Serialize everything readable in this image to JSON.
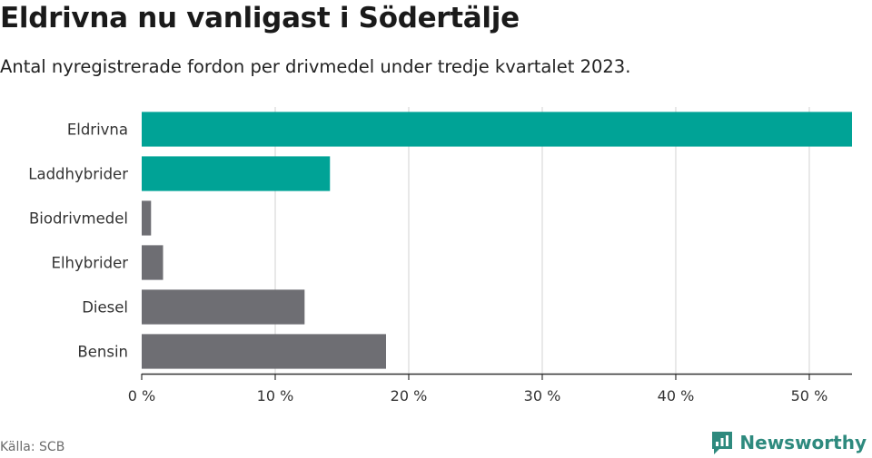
{
  "title": "Eldrivna nu vanligast i Södertälje",
  "subtitle": "Antal nyregistrerade fordon per drivmedel under tredje kvartalet 2023.",
  "source": "Källa: SCB",
  "brand": {
    "name": "Newsworthy",
    "icon": "newsworthy-logo-icon"
  },
  "colors": {
    "highlight": "#00a396",
    "default": "#6e6e73",
    "grid": "#d9d9d9",
    "axis": "#333333"
  },
  "chart_data": {
    "type": "bar",
    "orientation": "horizontal",
    "categories": [
      "Eldrivna",
      "Laddhybrider",
      "Biodrivmedel",
      "Elhybrider",
      "Diesel",
      "Bensin"
    ],
    "values": [
      53.2,
      14.1,
      0.7,
      1.6,
      12.2,
      18.3
    ],
    "highlighted": [
      true,
      true,
      false,
      false,
      false,
      false
    ],
    "xlim": [
      0,
      53.2
    ],
    "xticks": [
      0,
      10,
      20,
      30,
      40,
      50
    ],
    "xtick_labels": [
      "0 %",
      "10 %",
      "20 %",
      "30 %",
      "40 %",
      "50 %"
    ],
    "xlabel": "",
    "ylabel": "",
    "grid": true
  }
}
